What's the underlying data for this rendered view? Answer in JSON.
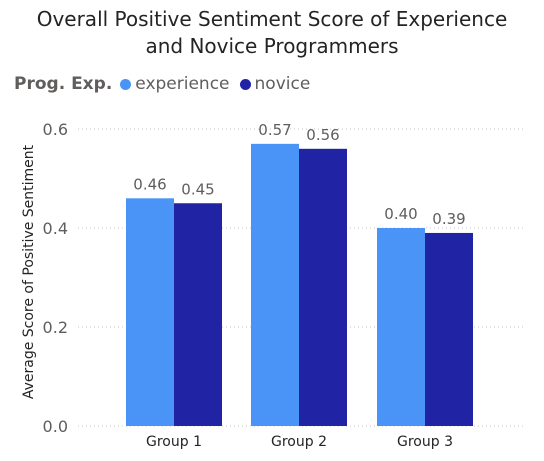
{
  "chart_data": {
    "type": "bar",
    "title_line1": "Overall Positive Sentiment Score of Experience",
    "title_line2": "and Novice Programmers",
    "legend_title": "Prog. Exp.",
    "categories": [
      "Group 1",
      "Group 2",
      "Group 3"
    ],
    "series": [
      {
        "name": "experience",
        "color": "#4a93f7",
        "values": [
          0.46,
          0.57,
          0.4
        ],
        "labels": [
          "0.46",
          "0.57",
          "0.40"
        ]
      },
      {
        "name": "novice",
        "color": "#2024a4",
        "values": [
          0.45,
          0.56,
          0.39
        ],
        "labels": [
          "0.45",
          "0.56",
          "0.39"
        ]
      }
    ],
    "ylabel": "Average Score of Positive Sentiment",
    "ylim": [
      0,
      0.6
    ],
    "yticks": [
      "0.0",
      "0.2",
      "0.4",
      "0.6"
    ],
    "grid": true,
    "legend_position": "top-left"
  }
}
